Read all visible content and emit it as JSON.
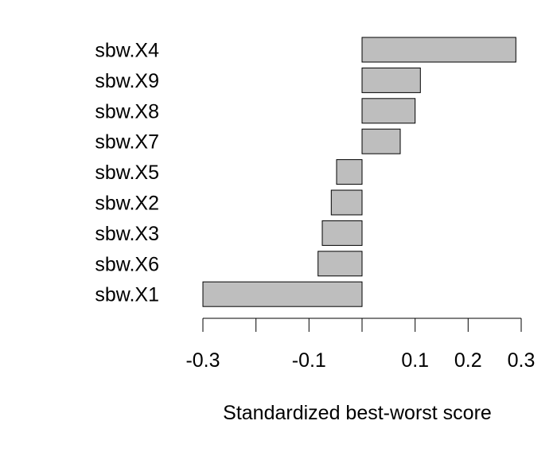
{
  "chart_data": {
    "type": "bar",
    "orientation": "horizontal",
    "categories": [
      "sbw.X4",
      "sbw.X9",
      "sbw.X8",
      "sbw.X7",
      "sbw.X5",
      "sbw.X2",
      "sbw.X3",
      "sbw.X6",
      "sbw.X1"
    ],
    "values": [
      0.29,
      0.11,
      0.1,
      0.072,
      -0.048,
      -0.058,
      -0.075,
      -0.083,
      -0.3
    ],
    "xlabel": "Standardized best-worst score",
    "ylabel": "",
    "title": "",
    "xlim": [
      -0.3,
      0.3
    ],
    "x_ticks": [
      -0.3,
      -0.2,
      -0.1,
      0.0,
      0.1,
      0.2,
      0.3
    ],
    "x_tick_labels": [
      "-0.3",
      "",
      "-0.1",
      "",
      "0.1",
      "0.2",
      "0.3"
    ],
    "grid": false,
    "legend": "none",
    "bar_fill": "#bebebe",
    "bar_stroke": "#000000"
  }
}
